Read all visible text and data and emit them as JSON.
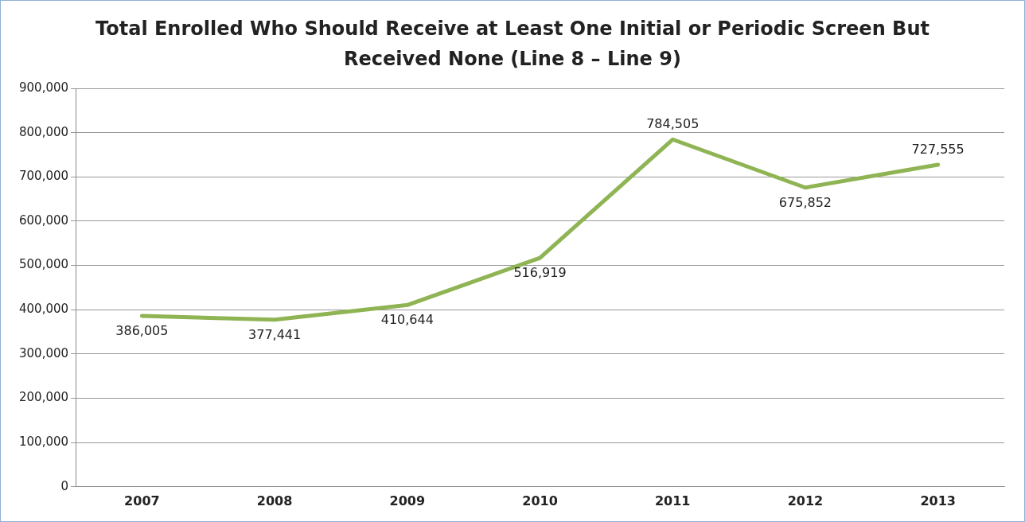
{
  "chart_data": {
    "type": "line",
    "title": "Total Enrolled Who Should Receive at Least One Initial or Periodic Screen But Received None (Line 8 – Line 9)",
    "categories": [
      "2007",
      "2008",
      "2009",
      "2010",
      "2011",
      "2012",
      "2013"
    ],
    "values": [
      386005,
      377441,
      410644,
      516919,
      784505,
      675852,
      727555
    ],
    "value_labels": [
      "386,005",
      "377,441",
      "410,644",
      "516,919",
      "784,505",
      "675,852",
      "727,555"
    ],
    "color": "#8fb454",
    "ylim": [
      0,
      900000
    ],
    "yticks": [
      {
        "value": 0,
        "label": "0"
      },
      {
        "value": 100000,
        "label": "100,000"
      },
      {
        "value": 200000,
        "label": "200,000"
      },
      {
        "value": 300000,
        "label": "300,000"
      },
      {
        "value": 400000,
        "label": "400,000"
      },
      {
        "value": 500000,
        "label": "500,000"
      },
      {
        "value": 600000,
        "label": "600,000"
      },
      {
        "value": 700000,
        "label": "700,000"
      },
      {
        "value": 800000,
        "label": "800,000"
      },
      {
        "value": 900000,
        "label": "900,000"
      }
    ],
    "grid": "y",
    "legend": false,
    "marker": "none",
    "line_style": "solid"
  }
}
